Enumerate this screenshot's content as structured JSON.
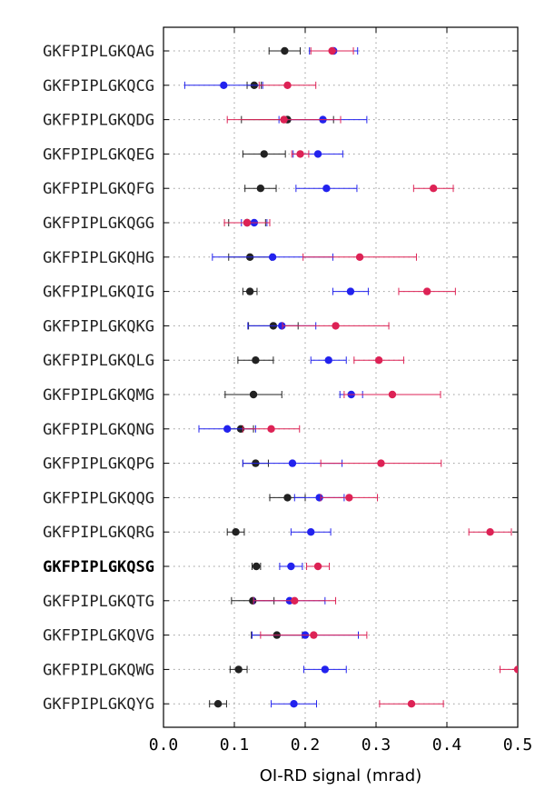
{
  "chart_data": {
    "type": "scatter",
    "orientation": "horizontal",
    "xlabel": "OI-RD signal (mrad)",
    "xlim": [
      0.0,
      0.5
    ],
    "xticks": [
      "0.0",
      "0.1",
      "0.2",
      "0.3",
      "0.4",
      "0.5"
    ],
    "grid": true,
    "highlighted_category": "GKFPIPLGKQSG",
    "categories": [
      "GKFPIPLGKQAG",
      "GKFPIPLGKQCG",
      "GKFPIPLGKQDG",
      "GKFPIPLGKQEG",
      "GKFPIPLGKQFG",
      "GKFPIPLGKQGG",
      "GKFPIPLGKQHG",
      "GKFPIPLGKQIG",
      "GKFPIPLGKQKG",
      "GKFPIPLGKQLG",
      "GKFPIPLGKQMG",
      "GKFPIPLGKQNG",
      "GKFPIPLGKQPG",
      "GKFPIPLGKQQG",
      "GKFPIPLGKQRG",
      "GKFPIPLGKQSG",
      "GKFPIPLGKQTG",
      "GKFPIPLGKQVG",
      "GKFPIPLGKQWG",
      "GKFPIPLGKQYG"
    ],
    "series": [
      {
        "color": "#222222",
        "values": [
          0.171,
          0.128,
          0.175,
          0.142,
          0.137,
          0.118,
          0.122,
          0.122,
          0.155,
          0.13,
          0.127,
          0.109,
          0.13,
          0.175,
          0.102,
          0.131,
          0.126,
          0.16,
          0.106,
          0.077
        ],
        "errors": [
          0.022,
          0.01,
          0.065,
          0.03,
          0.022,
          0.026,
          0.03,
          0.01,
          0.035,
          0.025,
          0.04,
          0.018,
          0.018,
          0.025,
          0.012,
          0.006,
          0.03,
          0.036,
          0.012,
          0.012
        ]
      },
      {
        "color": "#2222ee",
        "values": [
          0.24,
          0.085,
          0.225,
          0.218,
          0.23,
          0.128,
          0.154,
          0.264,
          0.167,
          0.233,
          0.265,
          0.09,
          0.182,
          0.22,
          0.208,
          0.18,
          0.178,
          0.2,
          0.228,
          0.184
        ],
        "errors": [
          0.034,
          0.055,
          0.062,
          0.035,
          0.043,
          0.018,
          0.085,
          0.025,
          0.048,
          0.025,
          0.016,
          0.04,
          0.07,
          0.035,
          0.028,
          0.016,
          0.05,
          0.075,
          0.03,
          0.032
        ]
      },
      {
        "color": "#dd2255",
        "values": [
          0.238,
          0.175,
          0.17,
          0.193,
          0.381,
          0.118,
          0.277,
          0.372,
          0.243,
          0.304,
          0.323,
          0.152,
          0.307,
          0.262,
          0.461,
          0.218,
          0.185,
          0.212,
          0.5,
          0.35
        ],
        "errors": [
          0.03,
          0.04,
          0.08,
          0.012,
          0.028,
          0.032,
          0.08,
          0.04,
          0.075,
          0.035,
          0.068,
          0.04,
          0.085,
          0.04,
          0.03,
          0.016,
          0.058,
          0.075,
          0.025,
          0.045
        ]
      }
    ]
  }
}
